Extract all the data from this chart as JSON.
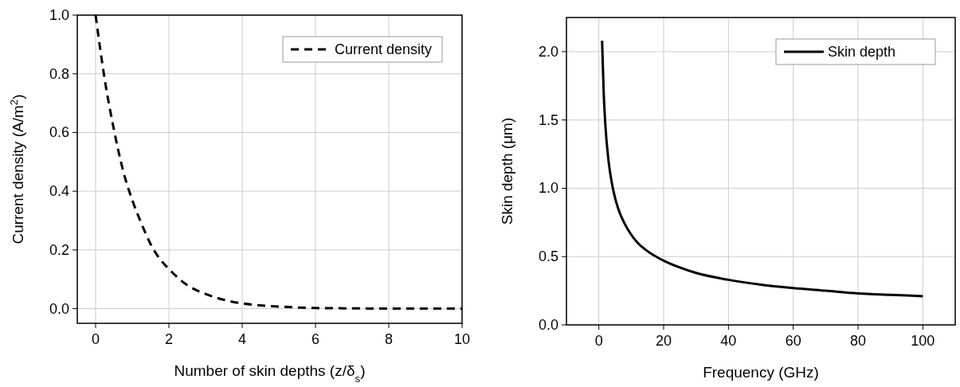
{
  "chart_data": [
    {
      "type": "line",
      "xlabel": "Number of skin depths (z/δ$_{s}$)",
      "ylabel": "Current density (A/m$^{2}$)",
      "xlim": [
        -0.5,
        10
      ],
      "ylim": [
        -0.05,
        1.0
      ],
      "xticks": [
        0,
        2,
        4,
        6,
        8,
        10
      ],
      "yticks": [
        {
          "value": 0,
          "label": "0.0"
        },
        0.2,
        0.4,
        0.6,
        0.8,
        {
          "value": 1,
          "label": "1.0"
        }
      ],
      "grid": true,
      "legend": "top right",
      "line_style": "dashed",
      "series": [
        {
          "name": "Current density",
          "color": "#000000",
          "x": [
            0,
            0.25,
            0.5,
            0.75,
            1,
            1.25,
            1.5,
            1.75,
            2,
            2.5,
            3,
            3.5,
            4,
            4.5,
            5,
            6,
            7,
            8,
            9,
            10
          ],
          "values": [
            1.0,
            0.78,
            0.61,
            0.47,
            0.37,
            0.29,
            0.22,
            0.17,
            0.135,
            0.08,
            0.05,
            0.03,
            0.018,
            0.011,
            0.007,
            0.002,
            0.001,
            0.0,
            0.0,
            0.0
          ]
        }
      ]
    },
    {
      "type": "line",
      "xlabel": "Frequency (GHz)",
      "ylabel": "Skin depth (μm)",
      "xlim": [
        -10,
        110
      ],
      "ylim": [
        0,
        2.25
      ],
      "xticks": [
        0,
        20,
        40,
        60,
        80,
        100
      ],
      "yticks": [
        {
          "value": 0,
          "label": "0.0"
        },
        0.5,
        {
          "value": 1,
          "label": "1.0"
        },
        1.5,
        {
          "value": 2,
          "label": "2.0"
        }
      ],
      "grid": true,
      "legend": "top right",
      "line_style": "solid",
      "series": [
        {
          "name": "Skin depth",
          "color": "#000000",
          "x": [
            1,
            1.5,
            2,
            3,
            4,
            5,
            6,
            8,
            10,
            12,
            15,
            20,
            25,
            30,
            40,
            50,
            60,
            70,
            80,
            90,
            100
          ],
          "values": [
            2.08,
            1.7,
            1.47,
            1.2,
            1.04,
            0.93,
            0.85,
            0.74,
            0.66,
            0.6,
            0.54,
            0.47,
            0.42,
            0.38,
            0.33,
            0.295,
            0.27,
            0.25,
            0.23,
            0.22,
            0.21
          ]
        }
      ]
    }
  ]
}
